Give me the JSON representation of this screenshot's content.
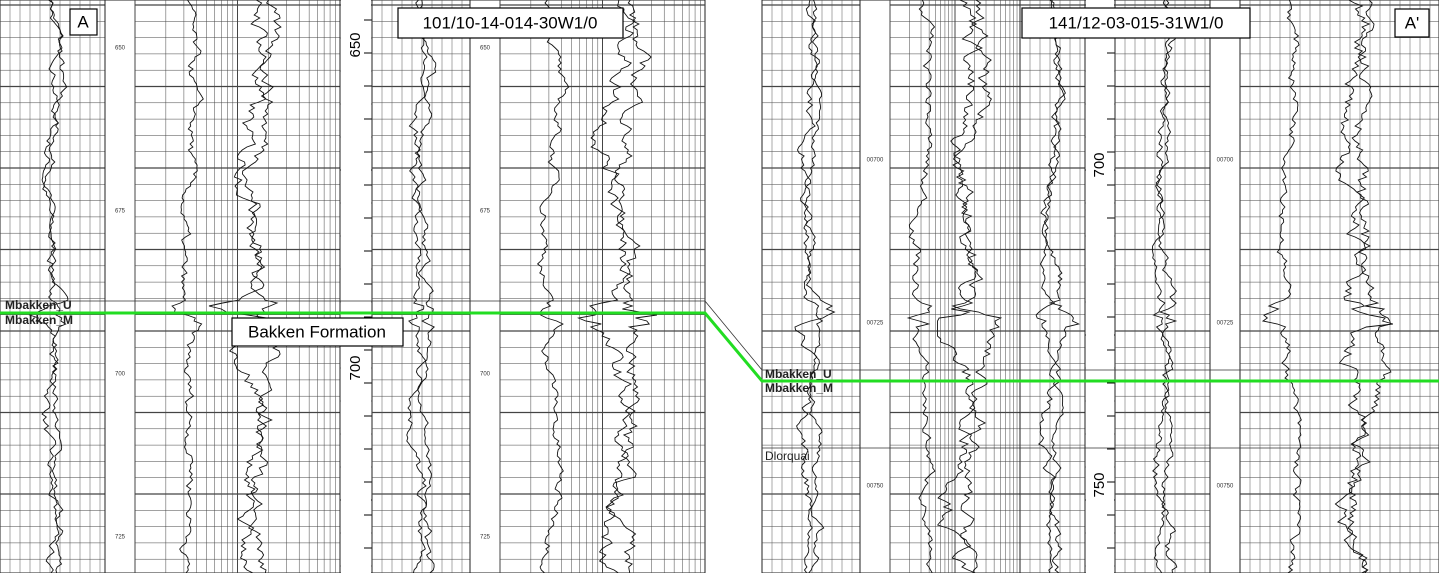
{
  "cross_section": {
    "formation_label": "Bakken Formation",
    "wells": [
      {
        "end_label": "A",
        "well_id": "101/10-14-014-30W1/0",
        "depths": [
          "650",
          "700"
        ],
        "track_depths": [
          "650",
          "675",
          "700",
          "725"
        ],
        "markers": [
          "Mbakken_U",
          "Mbakken_M"
        ]
      },
      {
        "end_label": "A'",
        "well_id": "141/12-03-015-31W1/0",
        "depths": [
          "700",
          "750"
        ],
        "track_depths": [
          "00700",
          "00725",
          "00750"
        ],
        "markers": [
          "Mbakken_U",
          "Mbakken_M",
          "Dlorquai"
        ]
      }
    ]
  }
}
